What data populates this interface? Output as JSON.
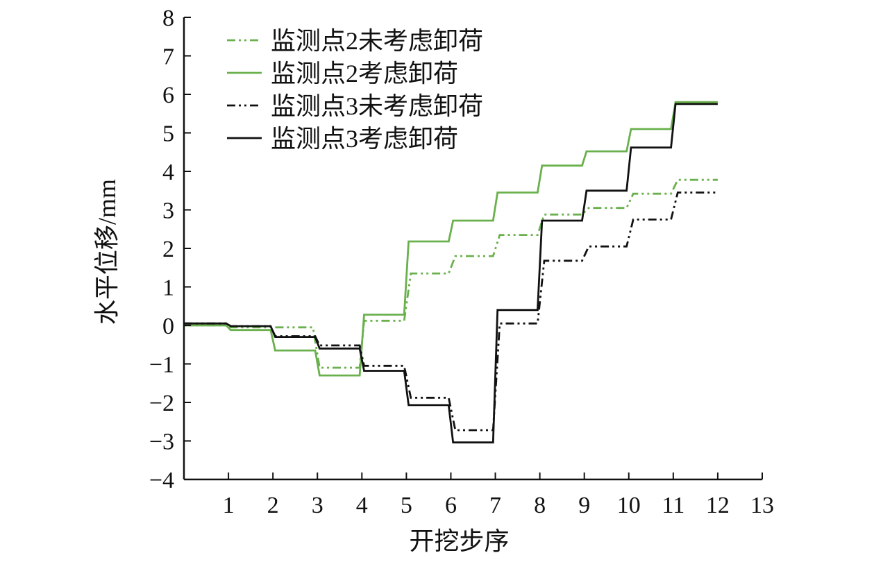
{
  "chart_data": {
    "type": "line",
    "xlabel": "开挖步序",
    "ylabel": "水平位移/mm",
    "xlim": [
      0,
      13
    ],
    "ylim": [
      -4,
      8
    ],
    "x_ticks": [
      "1",
      "2",
      "3",
      "4",
      "5",
      "6",
      "7",
      "8",
      "9",
      "10",
      "11",
      "12",
      "13"
    ],
    "y_ticks": [
      "8",
      "7",
      "6",
      "5",
      "4",
      "3",
      "2",
      "1",
      "0",
      "−1",
      "−2",
      "−3",
      "−4"
    ],
    "grid": false,
    "legend_position": "top-left",
    "series": [
      {
        "name": "监测点2未考虑卸荷",
        "color": "#6ab04c",
        "dash": "dash-dot-dot",
        "x": [
          0,
          0.95,
          1.05,
          2.9,
          3.05,
          3.95,
          4.05,
          4.95,
          5.1,
          5.95,
          6.1,
          6.95,
          7.1,
          7.95,
          8.1,
          8.95,
          9.1,
          9.95,
          10.1,
          10.95,
          11.1,
          12
        ],
        "y": [
          0,
          0,
          -0.05,
          -0.05,
          -1.1,
          -1.1,
          0.12,
          0.12,
          1.35,
          1.35,
          1.8,
          1.8,
          2.35,
          2.35,
          2.88,
          2.88,
          3.05,
          3.05,
          3.42,
          3.42,
          3.78,
          3.78
        ]
      },
      {
        "name": "监测点2考虑卸荷",
        "color": "#6ab04c",
        "dash": "solid",
        "x": [
          0,
          0.95,
          1.05,
          1.95,
          2.05,
          2.95,
          3.05,
          3.95,
          4.05,
          4.95,
          5.05,
          5.95,
          6.05,
          6.95,
          7.05,
          7.95,
          8.05,
          8.95,
          9.05,
          9.95,
          10.05,
          10.95,
          11.05,
          12
        ],
        "y": [
          0,
          0,
          -0.12,
          -0.12,
          -0.65,
          -0.65,
          -1.3,
          -1.3,
          0.28,
          0.28,
          2.18,
          2.18,
          2.72,
          2.72,
          3.45,
          3.45,
          4.15,
          4.15,
          4.52,
          4.52,
          5.1,
          5.1,
          5.8,
          5.8
        ]
      },
      {
        "name": "监测点3未考虑卸荷",
        "color": "#111111",
        "dash": "dash-dot-dot",
        "x": [
          0,
          0.95,
          1.05,
          1.95,
          2.05,
          2.95,
          3.05,
          3.95,
          4.05,
          4.95,
          5.1,
          5.95,
          6.1,
          6.95,
          7.1,
          7.95,
          8.1,
          8.95,
          9.1,
          9.95,
          10.1,
          10.95,
          11.1,
          12
        ],
        "y": [
          0.05,
          0.05,
          -0.02,
          -0.02,
          -0.28,
          -0.28,
          -0.52,
          -0.52,
          -1.05,
          -1.05,
          -1.88,
          -1.88,
          -2.72,
          -2.72,
          0.05,
          0.05,
          1.68,
          1.68,
          2.05,
          2.05,
          2.75,
          2.75,
          3.45,
          3.45
        ]
      },
      {
        "name": "监测点3考虑卸荷",
        "color": "#111111",
        "dash": "solid",
        "x": [
          0,
          0.95,
          1.05,
          1.95,
          2.05,
          2.95,
          3.05,
          3.95,
          4.05,
          4.95,
          5.05,
          5.95,
          6.05,
          6.95,
          7.05,
          7.95,
          8.05,
          8.95,
          9.05,
          9.95,
          10.05,
          10.95,
          11.05,
          12
        ],
        "y": [
          0.05,
          0.05,
          -0.02,
          -0.02,
          -0.3,
          -0.3,
          -0.6,
          -0.6,
          -1.18,
          -1.18,
          -2.07,
          -2.07,
          -3.04,
          -3.04,
          0.4,
          0.4,
          2.72,
          2.72,
          3.5,
          3.5,
          4.62,
          4.62,
          5.75,
          5.75
        ]
      }
    ]
  }
}
